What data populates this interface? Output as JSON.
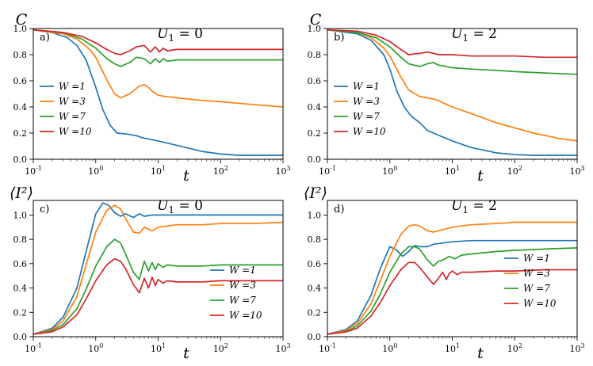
{
  "colors": {
    "W1": "#1f77b4",
    "W3": "#ff7f0e",
    "W7": "#2ca02c",
    "W10": "#d62728"
  },
  "chart_data": [
    {
      "type": "line",
      "panel": "a)",
      "title": "U_1 = 0",
      "ylabel": "C",
      "xlabel": "t",
      "xscale": "log",
      "xlim": [
        0.1,
        1000
      ],
      "ylim": [
        0.0,
        1.0
      ],
      "xticks": [
        "10^-1",
        "10^0",
        "10^1",
        "10^2",
        "10^3"
      ],
      "yticks": [
        "0.0",
        "0.2",
        "0.4",
        "0.6",
        "0.8",
        "1.0"
      ],
      "legend_position": "center-left",
      "series": [
        {
          "name": "W =1",
          "color": "#1f77b4",
          "x": [
            0.1,
            0.2,
            0.35,
            0.5,
            0.7,
            1.0,
            1.3,
            1.7,
            2.2,
            2.8,
            3.5,
            4.5,
            5.5,
            7,
            10,
            15,
            25,
            50,
            100,
            200,
            400,
            1000
          ],
          "y": [
            0.99,
            0.97,
            0.93,
            0.87,
            0.76,
            0.55,
            0.38,
            0.26,
            0.2,
            0.195,
            0.19,
            0.18,
            0.165,
            0.155,
            0.14,
            0.12,
            0.095,
            0.06,
            0.04,
            0.03,
            0.03,
            0.03
          ]
        },
        {
          "name": "W =3",
          "color": "#ff7f0e",
          "x": [
            0.1,
            0.3,
            0.5,
            0.8,
            1.0,
            1.5,
            2.0,
            2.5,
            3.5,
            5,
            6,
            7,
            8,
            10,
            13,
            20,
            50,
            100,
            300,
            1000
          ],
          "y": [
            0.99,
            0.96,
            0.92,
            0.84,
            0.78,
            0.61,
            0.5,
            0.47,
            0.5,
            0.56,
            0.57,
            0.55,
            0.52,
            0.49,
            0.48,
            0.47,
            0.45,
            0.44,
            0.42,
            0.4
          ]
        },
        {
          "name": "W =7",
          "color": "#2ca02c",
          "x": [
            0.1,
            0.3,
            0.6,
            1.0,
            1.5,
            2.0,
            2.5,
            3.5,
            4.5,
            6,
            7.5,
            9,
            10.5,
            12,
            14,
            20,
            50,
            100,
            300,
            1000
          ],
          "y": [
            0.99,
            0.97,
            0.92,
            0.85,
            0.77,
            0.73,
            0.71,
            0.74,
            0.78,
            0.77,
            0.73,
            0.77,
            0.74,
            0.77,
            0.75,
            0.76,
            0.76,
            0.76,
            0.76,
            0.76
          ]
        },
        {
          "name": "W =10",
          "color": "#d62728",
          "x": [
            0.1,
            0.3,
            0.6,
            1.0,
            1.5,
            2.0,
            2.5,
            3.5,
            4.5,
            6,
            7.5,
            9,
            10.5,
            12,
            14,
            20,
            50,
            100,
            300,
            1000
          ],
          "y": [
            0.99,
            0.97,
            0.94,
            0.89,
            0.84,
            0.81,
            0.8,
            0.83,
            0.86,
            0.87,
            0.82,
            0.86,
            0.82,
            0.85,
            0.83,
            0.84,
            0.84,
            0.84,
            0.84,
            0.84
          ]
        }
      ]
    },
    {
      "type": "line",
      "panel": "b)",
      "title": "U_1 = 2",
      "ylabel": "C",
      "xlabel": "t",
      "xscale": "log",
      "xlim": [
        0.1,
        1000
      ],
      "ylim": [
        0.0,
        1.0
      ],
      "xticks": [
        "10^-1",
        "10^0",
        "10^1",
        "10^2",
        "10^3"
      ],
      "yticks": [
        "0.0",
        "0.2",
        "0.4",
        "0.6",
        "0.8",
        "1.0"
      ],
      "legend_position": "center-left",
      "series": [
        {
          "name": "W =1",
          "color": "#1f77b4",
          "x": [
            0.1,
            0.3,
            0.5,
            0.8,
            1.0,
            1.3,
            1.7,
            2.2,
            3.0,
            4.0,
            5.0,
            7,
            10,
            20,
            50,
            100,
            200,
            500,
            1000
          ],
          "y": [
            0.99,
            0.96,
            0.91,
            0.8,
            0.69,
            0.52,
            0.4,
            0.33,
            0.28,
            0.22,
            0.2,
            0.17,
            0.14,
            0.09,
            0.05,
            0.035,
            0.03,
            0.03,
            0.03
          ]
        },
        {
          "name": "W =3",
          "color": "#ff7f0e",
          "x": [
            0.1,
            0.3,
            0.5,
            0.8,
            1.0,
            1.5,
            2.0,
            3.0,
            4.0,
            5.0,
            6.0,
            8,
            10,
            20,
            50,
            100,
            200,
            500,
            1000
          ],
          "y": [
            0.99,
            0.97,
            0.93,
            0.85,
            0.79,
            0.63,
            0.53,
            0.48,
            0.47,
            0.46,
            0.45,
            0.42,
            0.4,
            0.35,
            0.28,
            0.24,
            0.2,
            0.16,
            0.14
          ]
        },
        {
          "name": "W =7",
          "color": "#2ca02c",
          "x": [
            0.1,
            0.3,
            0.6,
            1.0,
            1.5,
            2.0,
            3.0,
            4.0,
            5.0,
            6,
            8,
            10,
            20,
            50,
            100,
            300,
            1000
          ],
          "y": [
            0.99,
            0.97,
            0.93,
            0.86,
            0.78,
            0.73,
            0.71,
            0.73,
            0.74,
            0.72,
            0.71,
            0.7,
            0.69,
            0.68,
            0.67,
            0.66,
            0.65
          ]
        },
        {
          "name": "W =10",
          "color": "#d62728",
          "x": [
            0.1,
            0.3,
            0.6,
            1.0,
            1.5,
            2.0,
            3.0,
            4.0,
            5.0,
            6,
            8,
            10,
            20,
            50,
            100,
            300,
            1000
          ],
          "y": [
            0.99,
            0.98,
            0.95,
            0.9,
            0.84,
            0.8,
            0.81,
            0.82,
            0.81,
            0.8,
            0.8,
            0.8,
            0.79,
            0.79,
            0.79,
            0.78,
            0.78
          ]
        }
      ]
    },
    {
      "type": "line",
      "panel": "c)",
      "title": "U_1 = 0",
      "ylabel": "⟨I²⟩",
      "xlabel": "t",
      "xscale": "log",
      "xlim": [
        0.1,
        1000
      ],
      "ylim": [
        0.0,
        1.12
      ],
      "xticks": [
        "10^-1",
        "10^0",
        "10^1",
        "10^2",
        "10^3"
      ],
      "yticks": [
        "0.0",
        "0.2",
        "0.4",
        "0.6",
        "0.8",
        "1.0"
      ],
      "legend_position": "center-right",
      "series": [
        {
          "name": "W =1",
          "color": "#1f77b4",
          "x": [
            0.1,
            0.2,
            0.3,
            0.5,
            0.7,
            1.0,
            1.3,
            1.6,
            2.0,
            2.5,
            3.0,
            4.0,
            5.0,
            6.0,
            8,
            10,
            20,
            50,
            100,
            300,
            1000
          ],
          "y": [
            0.02,
            0.07,
            0.16,
            0.4,
            0.7,
            1.01,
            1.1,
            1.08,
            1.02,
            0.99,
            1.01,
            0.98,
            1.01,
            0.99,
            1.0,
            1.0,
            1.0,
            1.0,
            1.0,
            1.0,
            1.0
          ]
        },
        {
          "name": "W =3",
          "color": "#ff7f0e",
          "x": [
            0.1,
            0.2,
            0.3,
            0.5,
            0.7,
            1.0,
            1.5,
            2.0,
            2.5,
            3.0,
            4.0,
            5.0,
            6.0,
            8,
            10,
            20,
            50,
            100,
            300,
            1000
          ],
          "y": [
            0.02,
            0.06,
            0.13,
            0.33,
            0.59,
            0.86,
            1.04,
            1.08,
            1.05,
            0.97,
            0.86,
            0.85,
            0.9,
            0.87,
            0.9,
            0.92,
            0.92,
            0.93,
            0.93,
            0.94
          ]
        },
        {
          "name": "W =7",
          "color": "#2ca02c",
          "x": [
            0.1,
            0.2,
            0.3,
            0.5,
            0.7,
            1.0,
            1.5,
            2.0,
            2.5,
            3.0,
            4.0,
            5.0,
            6.0,
            7,
            8,
            9,
            10,
            12,
            14,
            20,
            50,
            100,
            300,
            1000
          ],
          "y": [
            0.02,
            0.05,
            0.1,
            0.23,
            0.39,
            0.58,
            0.74,
            0.8,
            0.77,
            0.68,
            0.53,
            0.47,
            0.62,
            0.54,
            0.61,
            0.55,
            0.6,
            0.57,
            0.59,
            0.58,
            0.58,
            0.59,
            0.59,
            0.59
          ]
        },
        {
          "name": "W =10",
          "color": "#d62728",
          "x": [
            0.1,
            0.2,
            0.3,
            0.5,
            0.7,
            1.0,
            1.5,
            2.0,
            2.5,
            3.0,
            4.0,
            5.0,
            6.0,
            7,
            8,
            9,
            10,
            12,
            14,
            20,
            50,
            100,
            300,
            1000
          ],
          "y": [
            0.02,
            0.04,
            0.08,
            0.18,
            0.31,
            0.46,
            0.59,
            0.64,
            0.62,
            0.56,
            0.43,
            0.36,
            0.48,
            0.4,
            0.49,
            0.42,
            0.47,
            0.44,
            0.46,
            0.45,
            0.45,
            0.46,
            0.46,
            0.46
          ]
        }
      ]
    },
    {
      "type": "line",
      "panel": "d)",
      "title": "U_1 = 2",
      "ylabel": "⟨I²⟩",
      "xlabel": "t",
      "xscale": "log",
      "xlim": [
        0.1,
        1000
      ],
      "ylim": [
        0.0,
        1.12
      ],
      "xticks": [
        "10^-1",
        "10^0",
        "10^1",
        "10^2",
        "10^3"
      ],
      "yticks": [
        "0.0",
        "0.2",
        "0.4",
        "0.6",
        "0.8",
        "1.0"
      ],
      "legend_position": "center-right",
      "series": [
        {
          "name": "W =1",
          "color": "#1f77b4",
          "x": [
            0.1,
            0.2,
            0.3,
            0.5,
            0.7,
            1.0,
            1.3,
            1.6,
            2.0,
            2.5,
            3.0,
            4.0,
            5.0,
            7,
            10,
            20,
            50,
            100,
            300,
            1000
          ],
          "y": [
            0.02,
            0.06,
            0.13,
            0.34,
            0.56,
            0.74,
            0.71,
            0.66,
            0.7,
            0.75,
            0.74,
            0.74,
            0.76,
            0.77,
            0.78,
            0.79,
            0.79,
            0.79,
            0.79,
            0.79
          ]
        },
        {
          "name": "W =3",
          "color": "#ff7f0e",
          "x": [
            0.1,
            0.2,
            0.3,
            0.5,
            0.7,
            1.0,
            1.5,
            2.0,
            2.5,
            3.0,
            4.0,
            5.0,
            7,
            10,
            20,
            50,
            100,
            300,
            1000
          ],
          "y": [
            0.02,
            0.05,
            0.11,
            0.27,
            0.46,
            0.66,
            0.84,
            0.91,
            0.92,
            0.91,
            0.87,
            0.86,
            0.88,
            0.9,
            0.92,
            0.93,
            0.94,
            0.94,
            0.94
          ]
        },
        {
          "name": "W =7",
          "color": "#2ca02c",
          "x": [
            0.1,
            0.2,
            0.3,
            0.5,
            0.7,
            1.0,
            1.5,
            2.0,
            2.5,
            3.0,
            4.0,
            5.0,
            6,
            7,
            9,
            11,
            14,
            20,
            50,
            100,
            300,
            1000
          ],
          "y": [
            0.02,
            0.04,
            0.09,
            0.21,
            0.35,
            0.53,
            0.68,
            0.74,
            0.74,
            0.72,
            0.63,
            0.58,
            0.62,
            0.63,
            0.66,
            0.64,
            0.67,
            0.68,
            0.7,
            0.71,
            0.72,
            0.73
          ]
        },
        {
          "name": "W =10",
          "color": "#d62728",
          "x": [
            0.1,
            0.2,
            0.3,
            0.5,
            0.7,
            1.0,
            1.5,
            2.0,
            2.5,
            3.0,
            4.0,
            5.0,
            6,
            7,
            8,
            9,
            10,
            12,
            14,
            20,
            50,
            100,
            300,
            1000
          ],
          "y": [
            0.02,
            0.04,
            0.07,
            0.17,
            0.28,
            0.42,
            0.55,
            0.61,
            0.61,
            0.57,
            0.49,
            0.43,
            0.48,
            0.53,
            0.47,
            0.52,
            0.54,
            0.51,
            0.53,
            0.53,
            0.54,
            0.54,
            0.55,
            0.55
          ]
        }
      ]
    }
  ]
}
